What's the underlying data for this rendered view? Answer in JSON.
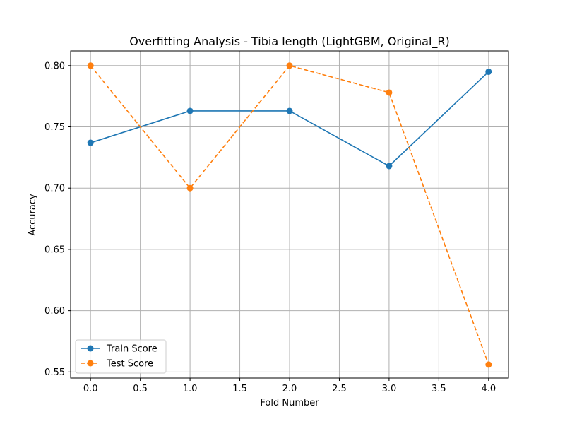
{
  "chart_data": {
    "type": "line",
    "title": "Overfitting Analysis - Tibia length (LightGBM, Original_R)",
    "xlabel": "Fold Number",
    "ylabel": "Accuracy",
    "x": [
      0,
      1,
      2,
      3,
      4
    ],
    "xlim": [
      -0.2,
      4.2
    ],
    "ylim": [
      0.545,
      0.812
    ],
    "xticks": [
      0.0,
      0.5,
      1.0,
      1.5,
      2.0,
      2.5,
      3.0,
      3.5,
      4.0
    ],
    "xtick_labels": [
      "0.0",
      "0.5",
      "1.0",
      "1.5",
      "2.0",
      "2.5",
      "3.0",
      "3.5",
      "4.0"
    ],
    "yticks": [
      0.55,
      0.6,
      0.65,
      0.7,
      0.75,
      0.8
    ],
    "ytick_labels": [
      "0.55",
      "0.60",
      "0.65",
      "0.70",
      "0.75",
      "0.80"
    ],
    "grid": true,
    "legend_position": "lower-left",
    "series": [
      {
        "name": "Train Score",
        "values": [
          0.737,
          0.763,
          0.763,
          0.718,
          0.795
        ],
        "color": "#1f77b4",
        "line_style": "solid",
        "marker": "circle"
      },
      {
        "name": "Test Score",
        "values": [
          0.8,
          0.7,
          0.8,
          0.778,
          0.556
        ],
        "color": "#ff7f0e",
        "line_style": "dashed",
        "marker": "circle"
      }
    ]
  }
}
